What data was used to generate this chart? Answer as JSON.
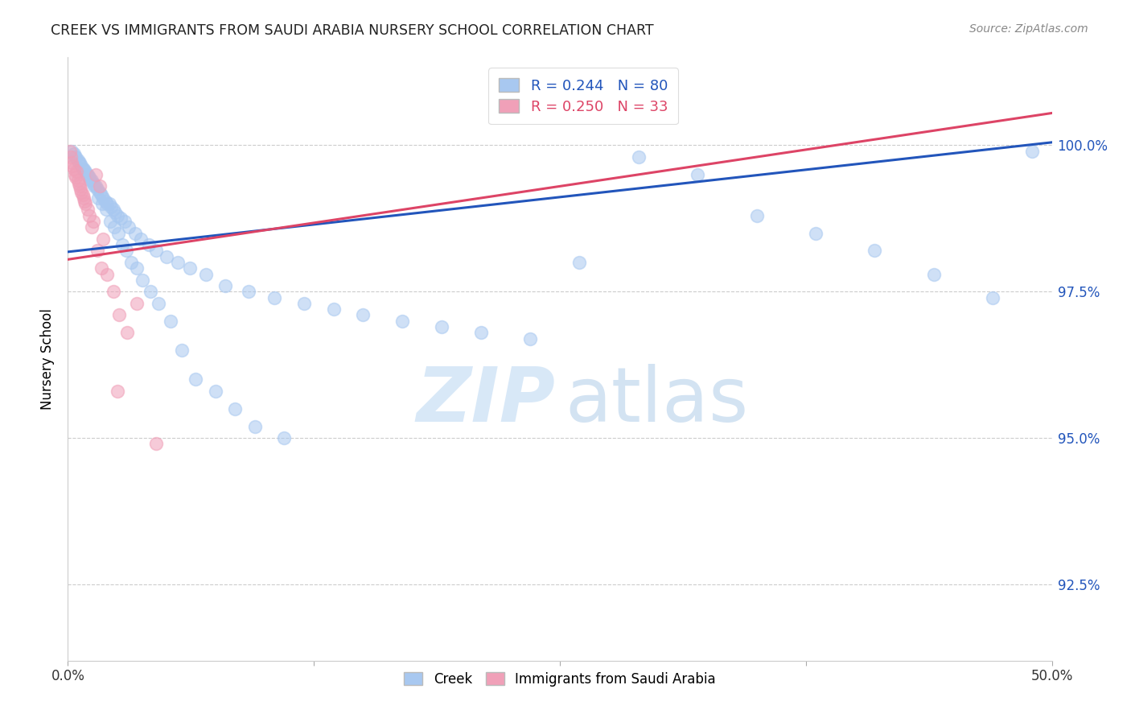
{
  "title": "CREEK VS IMMIGRANTS FROM SAUDI ARABIA NURSERY SCHOOL CORRELATION CHART",
  "source": "Source: ZipAtlas.com",
  "ylabel": "Nursery School",
  "ytick_values": [
    92.5,
    95.0,
    97.5,
    100.0
  ],
  "xlim": [
    0.0,
    50.0
  ],
  "ylim": [
    91.2,
    101.5
  ],
  "legend_blue_label": "R = 0.244   N = 80",
  "legend_pink_label": "R = 0.250   N = 33",
  "watermark_zip": "ZIP",
  "watermark_atlas": "atlas",
  "creek_color": "#A8C8F0",
  "immigrants_color": "#F0A0B8",
  "creek_line_color": "#2255BB",
  "immigrants_line_color": "#DD4466",
  "creek_label": "Creek",
  "immigrants_label": "Immigrants from Saudi Arabia",
  "blue_line_x": [
    0.0,
    50.0
  ],
  "blue_line_y": [
    98.18,
    100.05
  ],
  "pink_line_x": [
    0.0,
    50.0
  ],
  "pink_line_y": [
    98.05,
    100.55
  ],
  "creek_x": [
    0.2,
    0.3,
    0.4,
    0.5,
    0.6,
    0.7,
    0.8,
    0.9,
    1.0,
    1.1,
    1.2,
    1.3,
    1.4,
    1.5,
    1.6,
    1.7,
    1.8,
    1.9,
    2.0,
    2.1,
    2.2,
    2.3,
    2.4,
    2.5,
    2.7,
    2.9,
    3.1,
    3.4,
    3.7,
    4.1,
    4.5,
    5.0,
    5.6,
    6.2,
    7.0,
    8.0,
    9.2,
    10.5,
    12.0,
    13.5,
    15.0,
    17.0,
    19.0,
    21.0,
    23.5,
    26.0,
    29.0,
    32.0,
    35.0,
    38.0,
    41.0,
    44.0,
    47.0,
    49.0,
    0.35,
    0.55,
    0.75,
    0.95,
    1.15,
    1.35,
    1.55,
    1.75,
    1.95,
    2.15,
    2.35,
    2.55,
    2.75,
    2.95,
    3.2,
    3.5,
    3.8,
    4.2,
    4.6,
    5.2,
    5.8,
    6.5,
    7.5,
    8.5,
    9.5,
    11.0
  ],
  "creek_y": [
    99.9,
    99.85,
    99.8,
    99.75,
    99.7,
    99.65,
    99.6,
    99.55,
    99.5,
    99.45,
    99.4,
    99.35,
    99.3,
    99.25,
    99.2,
    99.15,
    99.1,
    99.05,
    99.0,
    99.0,
    98.95,
    98.9,
    98.85,
    98.8,
    98.75,
    98.7,
    98.6,
    98.5,
    98.4,
    98.3,
    98.2,
    98.1,
    98.0,
    97.9,
    97.8,
    97.6,
    97.5,
    97.4,
    97.3,
    97.2,
    97.1,
    97.0,
    96.9,
    96.8,
    96.7,
    98.0,
    99.8,
    99.5,
    98.8,
    98.5,
    98.2,
    97.8,
    97.4,
    99.9,
    99.8,
    99.7,
    99.6,
    99.5,
    99.4,
    99.3,
    99.1,
    99.0,
    98.9,
    98.7,
    98.6,
    98.5,
    98.3,
    98.2,
    98.0,
    97.9,
    97.7,
    97.5,
    97.3,
    97.0,
    96.5,
    96.0,
    95.8,
    95.5,
    95.2,
    95.0
  ],
  "immigrants_x": [
    0.1,
    0.15,
    0.2,
    0.25,
    0.3,
    0.35,
    0.4,
    0.5,
    0.6,
    0.7,
    0.8,
    0.9,
    1.0,
    1.1,
    1.2,
    1.4,
    1.6,
    1.8,
    2.0,
    2.3,
    2.6,
    3.0,
    3.5,
    0.45,
    0.55,
    0.65,
    0.75,
    0.85,
    1.3,
    1.5,
    1.7,
    2.5,
    4.5
  ],
  "immigrants_y": [
    99.9,
    99.8,
    99.7,
    99.65,
    99.6,
    99.5,
    99.45,
    99.4,
    99.3,
    99.2,
    99.1,
    99.0,
    98.9,
    98.8,
    98.6,
    99.5,
    99.3,
    98.4,
    97.8,
    97.5,
    97.1,
    96.8,
    97.3,
    99.55,
    99.35,
    99.25,
    99.15,
    99.05,
    98.7,
    98.2,
    97.9,
    95.8,
    94.9
  ]
}
